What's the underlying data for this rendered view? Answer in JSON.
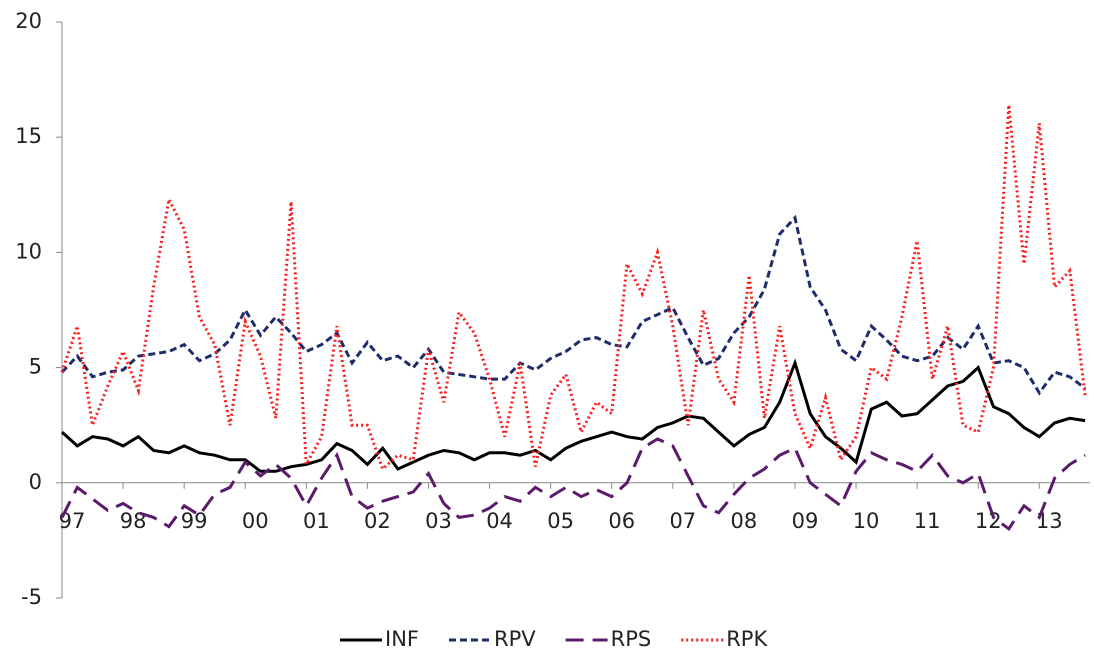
{
  "chart_data": {
    "type": "line",
    "x": [
      1997,
      1997.25,
      1997.5,
      1997.75,
      1998,
      1998.25,
      1998.5,
      1998.75,
      1999,
      1999.25,
      1999.5,
      1999.75,
      2000,
      2000.25,
      2000.5,
      2000.75,
      2001,
      2001.25,
      2001.5,
      2001.75,
      2002,
      2002.25,
      2002.5,
      2002.75,
      2003,
      2003.25,
      2003.5,
      2003.75,
      2004,
      2004.25,
      2004.5,
      2004.75,
      2005,
      2005.25,
      2005.5,
      2005.75,
      2006,
      2006.25,
      2006.5,
      2006.75,
      2007,
      2007.25,
      2007.5,
      2007.75,
      2008,
      2008.25,
      2008.5,
      2008.75,
      2009,
      2009.25,
      2009.5,
      2009.75,
      2010,
      2010.25,
      2010.5,
      2010.75,
      2011,
      2011.25,
      2011.5,
      2011.75,
      2012,
      2012.25,
      2012.5,
      2012.75,
      2013,
      2013.25,
      2013.5,
      2013.75
    ],
    "xlim": [
      1997,
      2013.83
    ],
    "xticks": [
      {
        "value": 1997,
        "label": "97"
      },
      {
        "value": 1998,
        "label": "98"
      },
      {
        "value": 1999,
        "label": "99"
      },
      {
        "value": 2000,
        "label": "00"
      },
      {
        "value": 2001,
        "label": "01"
      },
      {
        "value": 2002,
        "label": "02"
      },
      {
        "value": 2003,
        "label": "03"
      },
      {
        "value": 2004,
        "label": "04"
      },
      {
        "value": 2005,
        "label": "05"
      },
      {
        "value": 2006,
        "label": "06"
      },
      {
        "value": 2007,
        "label": "07"
      },
      {
        "value": 2008,
        "label": "08"
      },
      {
        "value": 2009,
        "label": "09"
      },
      {
        "value": 2010,
        "label": "10"
      },
      {
        "value": 2011,
        "label": "11"
      },
      {
        "value": 2012,
        "label": "12"
      },
      {
        "value": 2013,
        "label": "13"
      }
    ],
    "ylim": [
      -5,
      20
    ],
    "yticks": [
      -5,
      0,
      5,
      10,
      15,
      20
    ],
    "series": [
      {
        "name": "INF",
        "color": "#000000",
        "dash": "solid",
        "values": [
          2.2,
          1.6,
          2.0,
          1.9,
          1.6,
          2.0,
          1.4,
          1.3,
          1.6,
          1.3,
          1.2,
          1.0,
          1.0,
          0.5,
          0.5,
          0.7,
          0.8,
          1.0,
          1.7,
          1.4,
          0.8,
          1.5,
          0.6,
          0.9,
          1.2,
          1.4,
          1.3,
          1.0,
          1.3,
          1.3,
          1.2,
          1.4,
          1.0,
          1.5,
          1.8,
          2.0,
          2.2,
          2.0,
          1.9,
          2.4,
          2.6,
          2.9,
          2.8,
          2.2,
          1.6,
          2.1,
          2.4,
          3.5,
          5.2,
          3.0,
          2.0,
          1.5,
          0.9,
          3.2,
          3.5,
          2.9,
          3.0,
          3.6,
          4.2,
          4.4,
          5.0,
          3.3,
          3.0,
          2.4,
          2.0,
          2.6,
          2.8,
          2.7
        ]
      },
      {
        "name": "RPV",
        "color": "#1f2d6b",
        "dash": "dashed",
        "values": [
          4.8,
          5.5,
          4.6,
          4.8,
          4.9,
          5.5,
          5.6,
          5.7,
          6.0,
          5.3,
          5.6,
          6.2,
          7.5,
          6.4,
          7.2,
          6.5,
          5.7,
          6.0,
          6.5,
          5.2,
          6.1,
          5.3,
          5.5,
          5.0,
          5.8,
          4.8,
          4.7,
          4.6,
          4.5,
          4.5,
          5.2,
          4.9,
          5.4,
          5.7,
          6.2,
          6.3,
          6.0,
          5.9,
          7.0,
          7.3,
          7.6,
          6.3,
          5.1,
          5.4,
          6.5,
          7.2,
          8.4,
          10.8,
          11.5,
          8.5,
          7.5,
          5.8,
          5.3,
          6.8,
          6.2,
          5.5,
          5.3,
          5.5,
          6.3,
          5.8,
          6.8,
          5.2,
          5.3,
          5.0,
          3.9,
          4.8,
          4.6,
          4.1
        ]
      },
      {
        "name": "RPS",
        "color": "#5b1a6b",
        "dash": "longdash",
        "values": [
          -1.5,
          -0.2,
          -0.7,
          -1.2,
          -0.9,
          -1.3,
          -1.5,
          -1.9,
          -1.0,
          -1.4,
          -0.5,
          -0.2,
          0.9,
          0.3,
          0.8,
          0.2,
          -1.0,
          0.2,
          1.2,
          -0.6,
          -1.1,
          -0.8,
          -0.6,
          -0.4,
          0.4,
          -0.9,
          -1.5,
          -1.4,
          -1.1,
          -0.6,
          -0.8,
          -0.2,
          -0.6,
          -0.2,
          -0.6,
          -0.3,
          -0.6,
          0.0,
          1.5,
          1.9,
          1.6,
          0.3,
          -1.0,
          -1.3,
          -0.5,
          0.2,
          0.6,
          1.2,
          1.5,
          0.0,
          -0.5,
          -1.0,
          0.5,
          1.3,
          1.0,
          0.8,
          0.5,
          1.2,
          0.3,
          0.0,
          0.4,
          -1.5,
          -2.0,
          -1.0,
          -1.5,
          0.2,
          0.8,
          1.2
        ]
      },
      {
        "name": "RPK",
        "color": "#ff1a1a",
        "dash": "dotted",
        "values": [
          4.8,
          6.8,
          2.5,
          4.2,
          5.7,
          4.0,
          8.5,
          12.3,
          11.0,
          7.2,
          6.0,
          2.5,
          7.0,
          5.5,
          2.8,
          12.2,
          0.8,
          2.0,
          6.8,
          2.5,
          2.5,
          0.6,
          1.2,
          1.0,
          5.8,
          3.5,
          7.4,
          6.5,
          4.5,
          2.0,
          5.2,
          0.7,
          3.8,
          4.7,
          2.2,
          3.5,
          3.0,
          9.5,
          8.2,
          10.0,
          6.8,
          2.5,
          7.5,
          4.5,
          3.5,
          9.0,
          2.8,
          6.8,
          3.0,
          1.5,
          3.7,
          1.0,
          2.0,
          5.0,
          4.5,
          7.2,
          10.5,
          4.5,
          6.8,
          2.5,
          2.2,
          5.0,
          16.4,
          9.5,
          15.6,
          8.5,
          9.2,
          3.8
        ]
      }
    ],
    "legend": "bottom"
  }
}
